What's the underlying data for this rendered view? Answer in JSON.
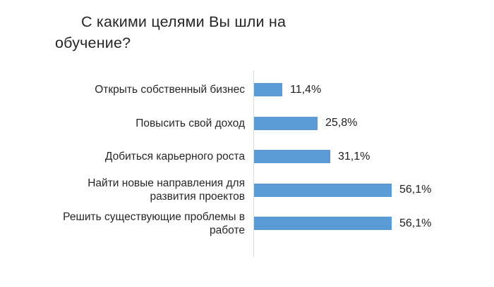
{
  "title": {
    "line1": "С какими целями Вы шли на",
    "line2": "обучение?"
  },
  "chart_data": {
    "type": "bar",
    "orientation": "horizontal",
    "title": "С какими целями Вы шли на обучение?",
    "categories": [
      "Открыть собственный бизнес",
      "Повысить свой доход",
      "Добиться карьерного роста",
      "Найти новые направления для развития проектов",
      "Решить существующие проблемы в работе"
    ],
    "category_lines": [
      [
        "Открыть собственный бизнес"
      ],
      [
        "Повысить свой доход"
      ],
      [
        "Добиться карьерного роста"
      ],
      [
        "Найти новые направления для",
        "развития проектов"
      ],
      [
        "Решить существующие проблемы в",
        "работе"
      ]
    ],
    "values": [
      11.4,
      25.8,
      31.1,
      56.1,
      56.1
    ],
    "value_labels": [
      "11,4%",
      "25,8%",
      "31,1%",
      "56,1%",
      "56,1%"
    ],
    "xlabel": "",
    "ylabel": "",
    "xlim": [
      0,
      60
    ],
    "grid": false,
    "legend": false,
    "bar_color": "#5B9BD5",
    "axis_line_color": "#D9D9D9",
    "text_color": "#262626",
    "background_color": "#FFFFFF"
  }
}
